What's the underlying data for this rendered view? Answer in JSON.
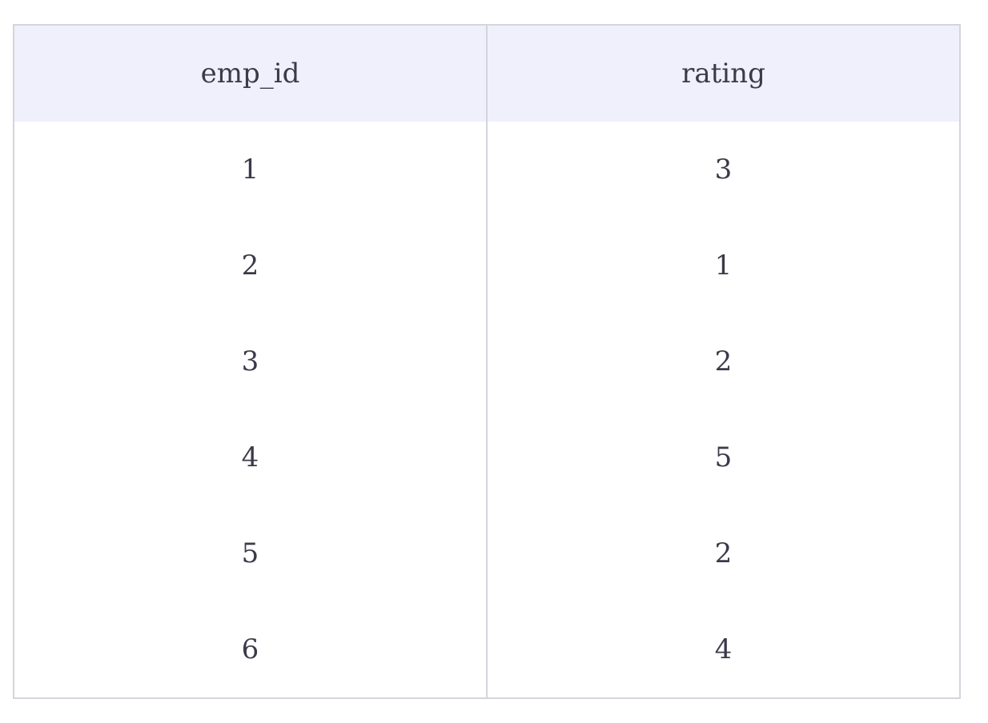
{
  "table": {
    "columns": [
      "emp_id",
      "rating"
    ],
    "rows": [
      [
        "1",
        "3"
      ],
      [
        "2",
        "1"
      ],
      [
        "3",
        "2"
      ],
      [
        "4",
        "5"
      ],
      [
        "5",
        "2"
      ],
      [
        "6",
        "4"
      ]
    ]
  },
  "colors": {
    "header_background": "#f0f0fc",
    "border": "#d4d4dc",
    "text": "#3a3a4a"
  }
}
